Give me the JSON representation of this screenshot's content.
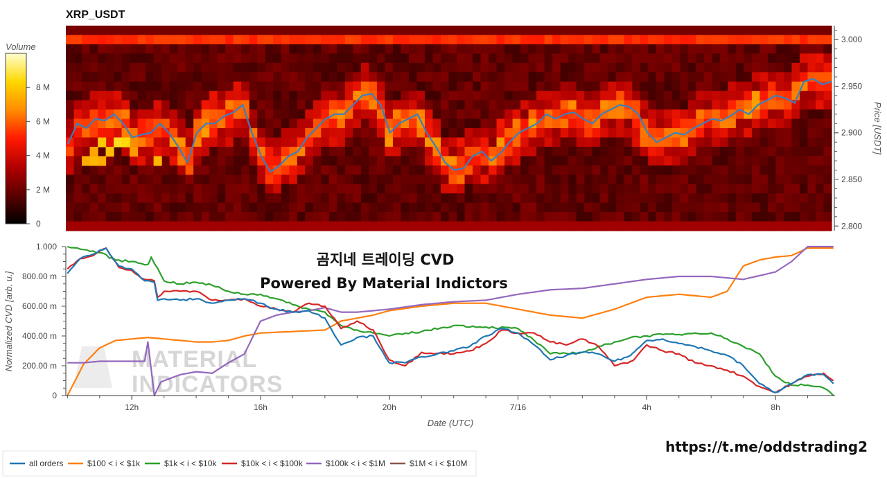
{
  "chart_data": [
    {
      "type": "heatmap",
      "title": "XRP_USDT",
      "ylabel": "Price [USDT]",
      "ylim": [
        2.795,
        3.015
      ],
      "yticks": [
        "3.000",
        "2.950",
        "2.900",
        "2.850",
        "2.800"
      ],
      "colorbar": {
        "label": "Volume",
        "ticks": [
          "8 M",
          "6 M",
          "4 M",
          "2 M",
          "0"
        ],
        "range": [
          0,
          10
        ]
      },
      "colorscale": [
        "#000000",
        "#5a0000",
        "#b30000",
        "#ff1a00",
        "#ff8c00",
        "#ffd700",
        "#ffffd0"
      ],
      "price_line": {
        "color": "#3a7fc2",
        "values": [
          2.888,
          2.91,
          2.905,
          2.915,
          2.913,
          2.92,
          2.91,
          2.895,
          2.898,
          2.9,
          2.91,
          2.9,
          2.885,
          2.868,
          2.9,
          2.91,
          2.91,
          2.918,
          2.922,
          2.93,
          2.9,
          2.875,
          2.858,
          2.865,
          2.875,
          2.88,
          2.895,
          2.905,
          2.915,
          2.92,
          2.92,
          2.93,
          2.94,
          2.942,
          2.93,
          2.9,
          2.91,
          2.915,
          2.92,
          2.9,
          2.885,
          2.868,
          2.86,
          2.862,
          2.875,
          2.88,
          2.87,
          2.878,
          2.89,
          2.9,
          2.905,
          2.91,
          2.92,
          2.915,
          2.92,
          2.922,
          2.915,
          2.91,
          2.92,
          2.925,
          2.93,
          2.928,
          2.92,
          2.9,
          2.89,
          2.895,
          2.9,
          2.898,
          2.905,
          2.91,
          2.915,
          2.913,
          2.918,
          2.925,
          2.92,
          2.93,
          2.935,
          2.94,
          2.937,
          2.932,
          2.955,
          2.958,
          2.952,
          2.955
        ],
        "ylim_note": ""
      }
    },
    {
      "type": "line",
      "overlay_title": "곰지네 트레이딩 CVD",
      "overlay_subtitle": "Powered By Material Indictors",
      "watermark": [
        "MATERIAL",
        "INDICATORS"
      ],
      "xlabel": "Date (UTC)",
      "ylabel": "Normalized CVD [arb. u.]",
      "ylim": [
        0,
        1000
      ],
      "yticks": [
        "1.000",
        "800.00 m",
        "600.00 m",
        "400.00 m",
        "200.00 m",
        "0"
      ],
      "ytick_values": [
        1000,
        800,
        600,
        400,
        200,
        0
      ],
      "xticks": [
        "12h",
        "16h",
        "20h",
        "7/16",
        "4h",
        "8h"
      ],
      "xtick_hours": [
        12,
        16,
        20,
        24,
        28,
        32
      ],
      "xlim_hours": [
        9.95,
        33.85
      ],
      "series": [
        {
          "name": "all orders",
          "color": "#1f77b4",
          "x": [
            10,
            10.4,
            10.8,
            11.2,
            11.6,
            12,
            12.4,
            12.7,
            12.8,
            13,
            13.5,
            14,
            14.5,
            15,
            15.5,
            16,
            16.5,
            17,
            17.5,
            18,
            18.5,
            19,
            19.5,
            20,
            20.5,
            21,
            21.5,
            22,
            22.5,
            23,
            23.5,
            24,
            24.5,
            25,
            25.5,
            26,
            26.5,
            27,
            27.5,
            27.6,
            28,
            28.5,
            29,
            29.5,
            30,
            30.5,
            31,
            31.5,
            32,
            32.5,
            33,
            33.5,
            33.8
          ],
          "values": [
            820,
            920,
            950,
            990,
            870,
            850,
            770,
            760,
            640,
            650,
            640,
            650,
            620,
            640,
            650,
            620,
            580,
            560,
            570,
            520,
            340,
            390,
            400,
            220,
            220,
            260,
            280,
            300,
            330,
            400,
            450,
            420,
            340,
            240,
            270,
            290,
            280,
            230,
            270,
            290,
            370,
            380,
            350,
            330,
            300,
            270,
            200,
            80,
            20,
            80,
            140,
            140,
            80
          ]
        },
        {
          "name": "$100 < i < $1k",
          "color": "#ff7f0e",
          "x": [
            10,
            10.5,
            11,
            11.5,
            12,
            12.5,
            13,
            13.5,
            14,
            14.5,
            15,
            15.5,
            16,
            17,
            18,
            18.5,
            19,
            19.5,
            20,
            21,
            22,
            23,
            24,
            25,
            26,
            27,
            28,
            29,
            30,
            30.5,
            31,
            31.5,
            32,
            32.5,
            33,
            33.8
          ],
          "values": [
            0,
            210,
            320,
            370,
            380,
            390,
            380,
            370,
            360,
            360,
            370,
            400,
            420,
            430,
            440,
            500,
            520,
            540,
            570,
            600,
            620,
            620,
            580,
            540,
            520,
            580,
            660,
            680,
            660,
            700,
            870,
            910,
            930,
            940,
            990,
            990
          ]
        },
        {
          "name": "$1k < i < $10k",
          "color": "#2ca02c",
          "x": [
            10,
            10.5,
            11,
            11.5,
            12,
            12.5,
            12.6,
            13,
            13.5,
            14,
            14.5,
            15,
            15.5,
            16,
            16.5,
            17,
            17.5,
            18,
            18.5,
            19,
            19.5,
            20,
            21,
            22,
            23,
            24,
            24.5,
            25,
            26,
            27,
            27.5,
            28,
            28.5,
            29,
            29.5,
            30,
            30.5,
            31,
            31.5,
            32,
            32.5,
            33,
            33.5,
            33.8
          ],
          "values": [
            1000,
            980,
            960,
            910,
            900,
            880,
            930,
            770,
            750,
            760,
            740,
            700,
            680,
            680,
            650,
            610,
            580,
            560,
            470,
            440,
            420,
            400,
            430,
            470,
            460,
            450,
            370,
            280,
            290,
            360,
            390,
            400,
            410,
            410,
            420,
            420,
            380,
            330,
            280,
            130,
            70,
            70,
            50,
            0
          ]
        },
        {
          "name": "$10k < i < $100k",
          "color": "#d62728",
          "x": [
            10,
            10.4,
            10.8,
            11.2,
            11.6,
            12,
            12.4,
            12.7,
            12.8,
            13,
            13.5,
            14,
            14.5,
            15,
            15.5,
            16,
            16.5,
            17,
            17.5,
            18,
            18.5,
            19,
            19.5,
            20,
            20.5,
            21,
            22,
            22.5,
            23,
            23.5,
            24,
            24.5,
            25,
            25.5,
            26,
            26.5,
            27,
            27.5,
            27.6,
            28,
            28.5,
            29,
            29.5,
            30,
            30.5,
            31,
            31.5,
            32,
            32.5,
            33,
            33.5,
            33.8
          ],
          "values": [
            850,
            920,
            940,
            990,
            860,
            840,
            780,
            770,
            660,
            700,
            700,
            700,
            640,
            640,
            650,
            600,
            580,
            560,
            620,
            600,
            450,
            500,
            440,
            240,
            200,
            290,
            280,
            300,
            350,
            440,
            420,
            420,
            360,
            340,
            380,
            330,
            200,
            230,
            240,
            340,
            300,
            280,
            220,
            200,
            170,
            130,
            60,
            20,
            80,
            130,
            150,
            100
          ]
        },
        {
          "name": "$100k < i < $1M",
          "color": "#9467bd",
          "x": [
            10,
            10.5,
            11,
            12,
            12.4,
            12.5,
            12.7,
            12.9,
            13,
            13.5,
            14,
            14.5,
            15,
            15.5,
            16,
            16.5,
            17,
            17.5,
            18,
            18.5,
            19,
            20,
            21,
            22,
            23,
            24,
            25,
            26,
            27,
            28,
            29,
            30,
            30.5,
            31,
            32,
            32.5,
            33,
            33.8
          ],
          "values": [
            220,
            220,
            230,
            230,
            230,
            360,
            0,
            90,
            100,
            140,
            160,
            150,
            220,
            280,
            500,
            540,
            560,
            570,
            590,
            560,
            560,
            580,
            610,
            630,
            640,
            680,
            710,
            720,
            750,
            780,
            800,
            800,
            790,
            780,
            830,
            900,
            1000,
            1000
          ]
        },
        {
          "name": "$1M < i < $10M",
          "color": "#8c564b",
          "x": [],
          "values": []
        }
      ]
    }
  ],
  "footer": {
    "url": "https://t.me/oddstrading2"
  }
}
